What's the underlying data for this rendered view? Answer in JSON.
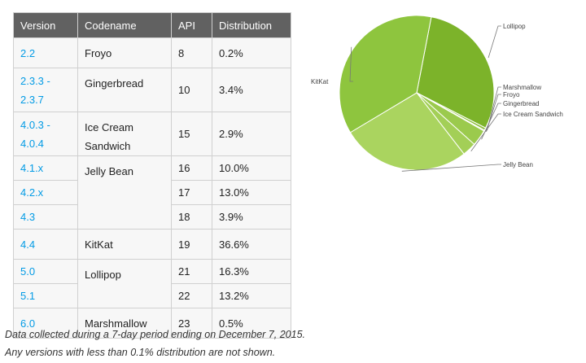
{
  "table": {
    "headers": [
      "Version",
      "Codename",
      "API",
      "Distribution"
    ],
    "rows": [
      {
        "version": "2.2",
        "codename": "Froyo",
        "api": "8",
        "distribution": "0.2%"
      },
      {
        "version": "2.3.3 -\n2.3.7",
        "codename": "Gingerbread",
        "api": "10",
        "distribution": "3.4%"
      },
      {
        "version": "4.0.3 -\n4.0.4",
        "codename": "Ice Cream\nSandwich",
        "api": "15",
        "distribution": "2.9%"
      },
      {
        "version": "4.1.x",
        "codename": "Jelly Bean",
        "api": "16",
        "distribution": "10.0%"
      },
      {
        "version": "4.2.x",
        "codename": "",
        "api": "17",
        "distribution": "13.0%"
      },
      {
        "version": "4.3",
        "codename": "",
        "api": "18",
        "distribution": "3.9%"
      },
      {
        "version": "4.4",
        "codename": "KitKat",
        "api": "19",
        "distribution": "36.6%"
      },
      {
        "version": "5.0",
        "codename": "Lollipop",
        "api": "21",
        "distribution": "16.3%"
      },
      {
        "version": "5.1",
        "codename": "",
        "api": "22",
        "distribution": "13.2%"
      },
      {
        "version": "6.0",
        "codename": "Marshmallow",
        "api": "23",
        "distribution": "0.5%"
      }
    ]
  },
  "footnotes": [
    "Data collected during a 7-day period ending on December 7, 2015.",
    "Any versions with less than 0.1% distribution are not shown."
  ],
  "colors": {
    "header_bg": "#616161",
    "version_link": "#039be5",
    "pie_slices": [
      "#7cb32a",
      "#8bbe38",
      "#93c641",
      "#9bca4d",
      "#a3cf57",
      "#aad45f",
      "#8ec53e"
    ]
  },
  "chart_data": {
    "type": "pie",
    "slices": [
      {
        "label": "Lollipop",
        "value": 29.5
      },
      {
        "label": "Marshmallow",
        "value": 0.5
      },
      {
        "label": "Froyo",
        "value": 0.2
      },
      {
        "label": "Gingerbread",
        "value": 3.4
      },
      {
        "label": "Ice Cream Sandwich",
        "value": 2.9
      },
      {
        "label": "Jelly Bean",
        "value": 26.9
      },
      {
        "label": "KitKat",
        "value": 36.6
      }
    ]
  }
}
